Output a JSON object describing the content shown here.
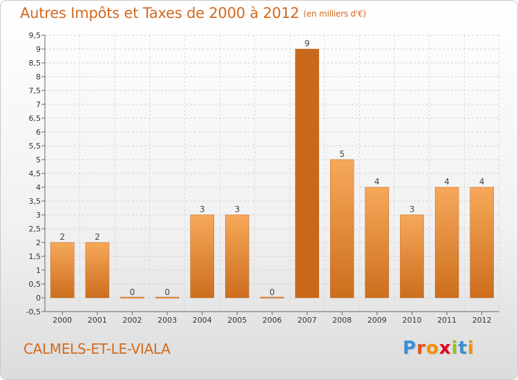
{
  "title": {
    "main": "Autres Impôts et Taxes de 2000 à 2012",
    "unit": "(en milliers d'€)"
  },
  "commune": "CALMELS-ET-LE-VIALA",
  "logo": {
    "text": "Proxiti",
    "letters": [
      {
        "ch": "P",
        "color": "#3b8fd4"
      },
      {
        "ch": "r",
        "color": "#e94e1b"
      },
      {
        "ch": "o",
        "color": "#f39200"
      },
      {
        "ch": "x",
        "color": "#e2001a"
      },
      {
        "ch": "i",
        "color": "#95c11f"
      },
      {
        "ch": "t",
        "color": "#3b8fd4"
      },
      {
        "ch": "i",
        "color": "#f39200"
      }
    ]
  },
  "colors": {
    "bar_light": "#f7a85a",
    "bar_dark": "#cc6e1e",
    "bar_highlight": "#c8681a",
    "accent": "#d2691e"
  },
  "chart_data": {
    "type": "bar",
    "categories": [
      "2000",
      "2001",
      "2002",
      "2003",
      "2004",
      "2005",
      "2006",
      "2007",
      "2008",
      "2009",
      "2010",
      "2011",
      "2012"
    ],
    "values": [
      2,
      2,
      0,
      0,
      3,
      3,
      0,
      9,
      5,
      4,
      3,
      4,
      4
    ],
    "value_labels": [
      "2",
      "2",
      "0",
      "0",
      "3",
      "3",
      "0",
      "9",
      "5",
      "4",
      "3",
      "4",
      "4"
    ],
    "highlight_index": 7,
    "ylim": [
      -0.5,
      9.5
    ],
    "yticks": [
      "-0,5",
      "0",
      "0,5",
      "1",
      "1,5",
      "2",
      "2,5",
      "3",
      "3,5",
      "4",
      "4,5",
      "5",
      "5,5",
      "6",
      "6,5",
      "7",
      "7,5",
      "8",
      "8,5",
      "9",
      "9,5"
    ],
    "grid": true
  }
}
